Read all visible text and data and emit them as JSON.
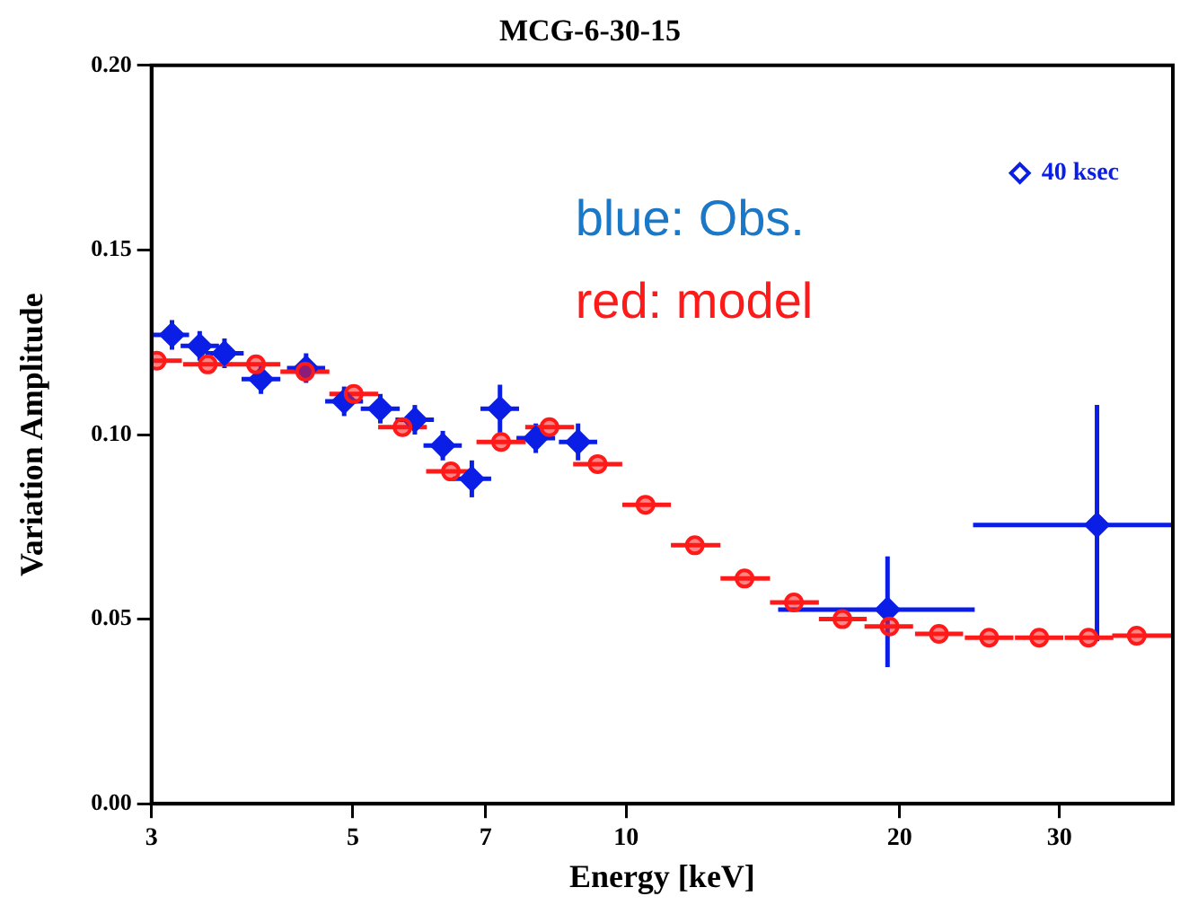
{
  "chart_data": {
    "type": "scatter",
    "title": "MCG-6-30-15",
    "xlabel": "Energy [keV]",
    "ylabel": "Variation Amplitude",
    "log": "x",
    "grid": false,
    "legend": "top right",
    "xlim": [
      3,
      40
    ],
    "xticks": [
      3,
      5,
      7,
      10,
      20,
      30
    ],
    "ylim": [
      0,
      0.2
    ],
    "yticks": [
      {
        "value": 0,
        "label": "0.00"
      },
      {
        "value": 0.05,
        "label": "0.05"
      },
      {
        "value": 0.1,
        "label": "0.10"
      },
      {
        "value": 0.15,
        "label": "0.15"
      },
      {
        "value": 0.2,
        "label": "0.20"
      }
    ],
    "annotations": [
      "blue: Obs.",
      "red: model"
    ],
    "series": [
      {
        "name": "40 ksec",
        "color": "#0a1ee6",
        "marker": "diamond",
        "x": [
          3.16,
          3.39,
          3.61,
          3.96,
          4.44,
          4.89,
          5.36,
          5.85,
          6.28,
          6.76,
          7.26,
          7.95,
          8.85,
          19.4,
          33.0
        ],
        "values": [
          0.127,
          0.124,
          0.122,
          0.115,
          0.118,
          0.109,
          0.107,
          0.104,
          0.097,
          0.088,
          0.107,
          0.099,
          0.098,
          0.0526,
          0.0755
        ],
        "errors": [
          0.004,
          0.004,
          0.004,
          0.004,
          0.004,
          0.004,
          0.004,
          0.004,
          0.004,
          0.005,
          0.0065,
          0.004,
          0.005,
          [
            0.037,
            0.067
          ],
          [
            0.044,
            0.108
          ]
        ],
        "xerrors": [
          [
            3.0,
            3.3
          ],
          [
            3.23,
            3.56
          ],
          [
            3.44,
            3.79
          ],
          [
            3.77,
            4.16
          ],
          [
            4.23,
            4.66
          ],
          [
            4.66,
            5.13
          ],
          [
            5.1,
            5.63
          ],
          [
            5.57,
            6.14
          ],
          [
            5.98,
            6.59
          ],
          [
            6.44,
            7.1
          ],
          [
            6.91,
            7.62
          ],
          [
            7.57,
            8.35
          ],
          [
            8.43,
            9.29
          ],
          [
            14.7,
            24.2
          ],
          [
            24.1,
            40
          ]
        ]
      },
      {
        "color": "#ff1a1a",
        "marker": "circle",
        "x": [
          3.04,
          3.46,
          3.91,
          4.43,
          5.01,
          5.67,
          6.41,
          7.28,
          8.23,
          9.3,
          10.5,
          11.9,
          13.5,
          15.3,
          17.3,
          19.5,
          22.1,
          25.1,
          28.5,
          32.3,
          36.5
        ],
        "values": [
          0.12,
          0.119,
          0.119,
          0.117,
          0.111,
          0.102,
          0.09,
          0.098,
          0.102,
          0.092,
          0.081,
          0.07,
          0.061,
          0.0545,
          0.05,
          0.048,
          0.046,
          0.045,
          0.045,
          0.045,
          0.0455
        ],
        "xerrors": [
          [
            3.0,
            3.24
          ],
          [
            3.25,
            3.68
          ],
          [
            3.67,
            4.16
          ],
          [
            4.16,
            4.71
          ],
          [
            4.71,
            5.33
          ],
          [
            5.33,
            6.03
          ],
          [
            6.02,
            6.82
          ],
          [
            6.84,
            7.75
          ],
          [
            7.74,
            8.76
          ],
          [
            8.74,
            9.9
          ],
          [
            9.9,
            11.2
          ],
          [
            11.2,
            12.7
          ],
          [
            12.7,
            14.4
          ],
          [
            14.4,
            16.3
          ],
          [
            16.3,
            18.4
          ],
          [
            18.3,
            20.7
          ],
          [
            20.8,
            23.5
          ],
          [
            23.6,
            26.7
          ],
          [
            26.8,
            30.3
          ],
          [
            30.4,
            34.4
          ],
          [
            34.3,
            40
          ]
        ]
      }
    ]
  }
}
